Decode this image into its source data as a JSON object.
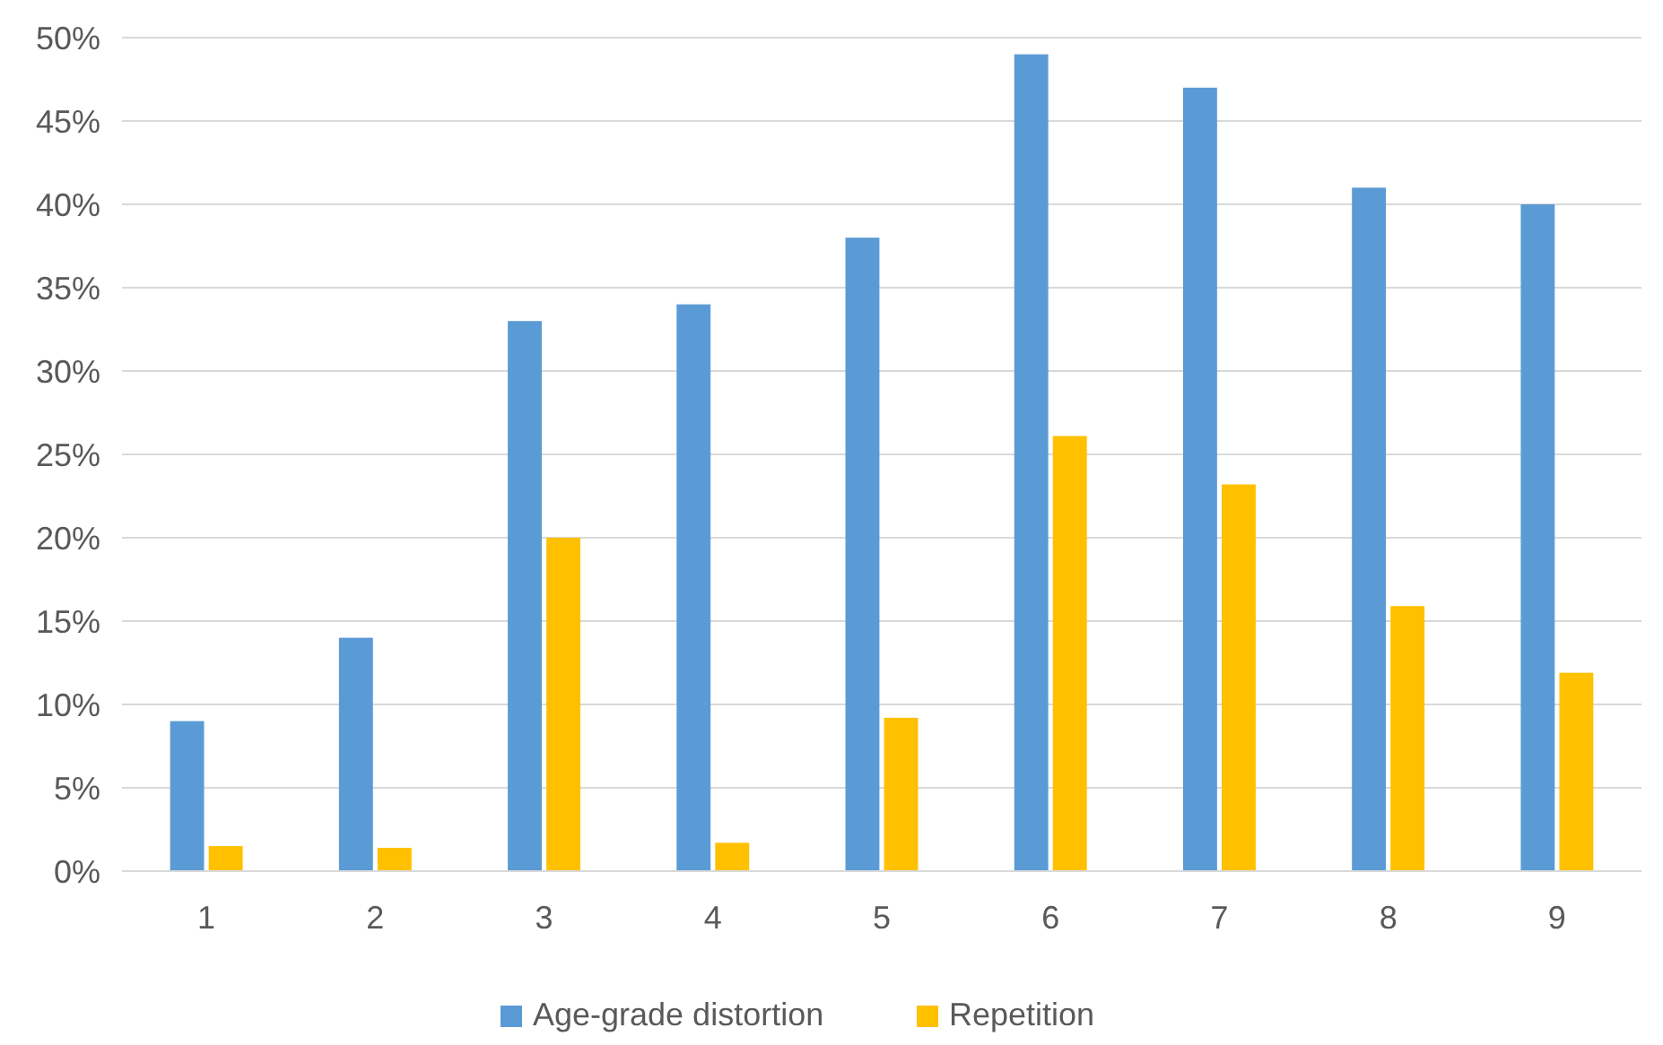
{
  "chart_data": {
    "type": "bar",
    "categories": [
      "1",
      "2",
      "3",
      "4",
      "5",
      "6",
      "7",
      "8",
      "9"
    ],
    "series": [
      {
        "name": "Age-grade distortion",
        "color": "#5b9bd5",
        "values": [
          9,
          14,
          33,
          34,
          38,
          49,
          47,
          41,
          40
        ]
      },
      {
        "name": "Repetition",
        "color": "#ffc000",
        "values": [
          1.5,
          1.4,
          20,
          1.7,
          9.2,
          26.1,
          23.2,
          15.9,
          11.9
        ]
      }
    ],
    "ylim": [
      0,
      50
    ],
    "yticks": [
      {
        "value": 0,
        "label": "0%"
      },
      {
        "value": 5,
        "label": "5%"
      },
      {
        "value": 10,
        "label": "10%"
      },
      {
        "value": 15,
        "label": "15%"
      },
      {
        "value": 20,
        "label": "20%"
      },
      {
        "value": 25,
        "label": "25%"
      },
      {
        "value": 30,
        "label": "30%"
      },
      {
        "value": 35,
        "label": "35%"
      },
      {
        "value": 40,
        "label": "40%"
      },
      {
        "value": 45,
        "label": "45%"
      },
      {
        "value": 50,
        "label": "50%"
      }
    ],
    "grid": "y",
    "legend": "bottom"
  }
}
